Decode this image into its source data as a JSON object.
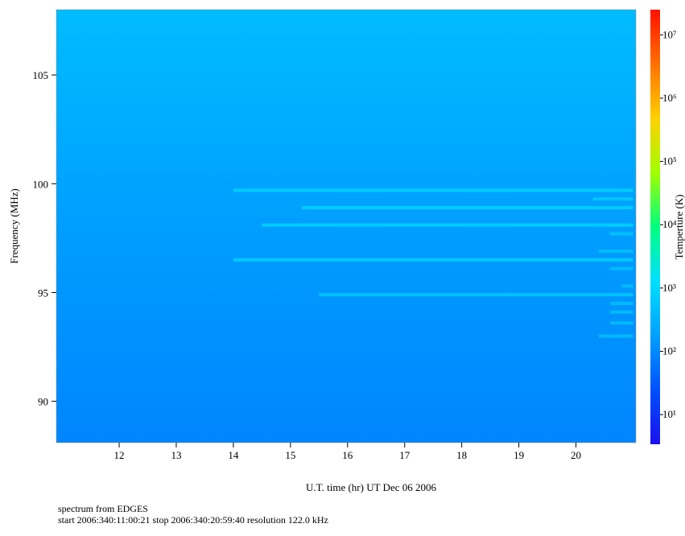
{
  "chart_data": {
    "type": "heatmap",
    "xlabel": "U.T. time (hr) UT Dec 06 2006",
    "ylabel": "Frequency (MHz)",
    "colorbar_label": "Temperture (K)",
    "notes": [
      "spectrum from EDGES",
      "start 2006:340:11:00:21 stop 2006:340:20:59:40 resolution 122.0 kHz"
    ],
    "xlim": [
      10.9,
      21.05
    ],
    "xticks": [
      12,
      13,
      14,
      15,
      16,
      17,
      18,
      19,
      20
    ],
    "ylim": [
      88.1,
      108.0
    ],
    "yticks": [
      90,
      95,
      100,
      105
    ],
    "zscale": "log",
    "zlim": [
      3.4,
      25000000
    ],
    "zticks": [
      {
        "value": 10,
        "label": "10¹"
      },
      {
        "value": 100,
        "label": "10²"
      },
      {
        "value": 1000,
        "label": "10³"
      },
      {
        "value": 10000,
        "label": "10⁴"
      },
      {
        "value": 100000,
        "label": "10⁵"
      },
      {
        "value": 1000000,
        "label": "10⁶"
      },
      {
        "value": 10000000,
        "label": "10⁷"
      }
    ],
    "colormap": [
      "#1a10f0",
      "#0050ff",
      "#00a0ff",
      "#00e0ff",
      "#00ff80",
      "#a0ff00",
      "#ffd000",
      "#ff7000",
      "#ff1000"
    ],
    "background": {
      "frequencies": [
        88.1,
        98,
        108
      ],
      "temps": [
        90,
        170,
        420
      ]
    },
    "lines": [
      {
        "freq": 99.7,
        "start": 14.0,
        "end": 21.0,
        "temp": 900
      },
      {
        "freq": 99.3,
        "start": 20.3,
        "end": 21.0,
        "temp": 700
      },
      {
        "freq": 98.9,
        "start": 15.2,
        "end": 21.0,
        "temp": 900
      },
      {
        "freq": 98.1,
        "start": 14.5,
        "end": 21.0,
        "temp": 900
      },
      {
        "freq": 97.7,
        "start": 20.6,
        "end": 21.0,
        "temp": 600
      },
      {
        "freq": 96.9,
        "start": 20.4,
        "end": 21.0,
        "temp": 500
      },
      {
        "freq": 96.5,
        "start": 14.0,
        "end": 21.0,
        "temp": 800
      },
      {
        "freq": 96.1,
        "start": 20.6,
        "end": 21.0,
        "temp": 500
      },
      {
        "freq": 95.3,
        "start": 20.8,
        "end": 21.0,
        "temp": 500
      },
      {
        "freq": 94.9,
        "start": 15.5,
        "end": 21.0,
        "temp": 700
      },
      {
        "freq": 94.5,
        "start": 20.6,
        "end": 21.0,
        "temp": 500
      },
      {
        "freq": 94.1,
        "start": 20.6,
        "end": 21.0,
        "temp": 500
      },
      {
        "freq": 93.6,
        "start": 20.6,
        "end": 21.0,
        "temp": 500
      },
      {
        "freq": 93.0,
        "start": 20.4,
        "end": 21.0,
        "temp": 500
      }
    ]
  }
}
